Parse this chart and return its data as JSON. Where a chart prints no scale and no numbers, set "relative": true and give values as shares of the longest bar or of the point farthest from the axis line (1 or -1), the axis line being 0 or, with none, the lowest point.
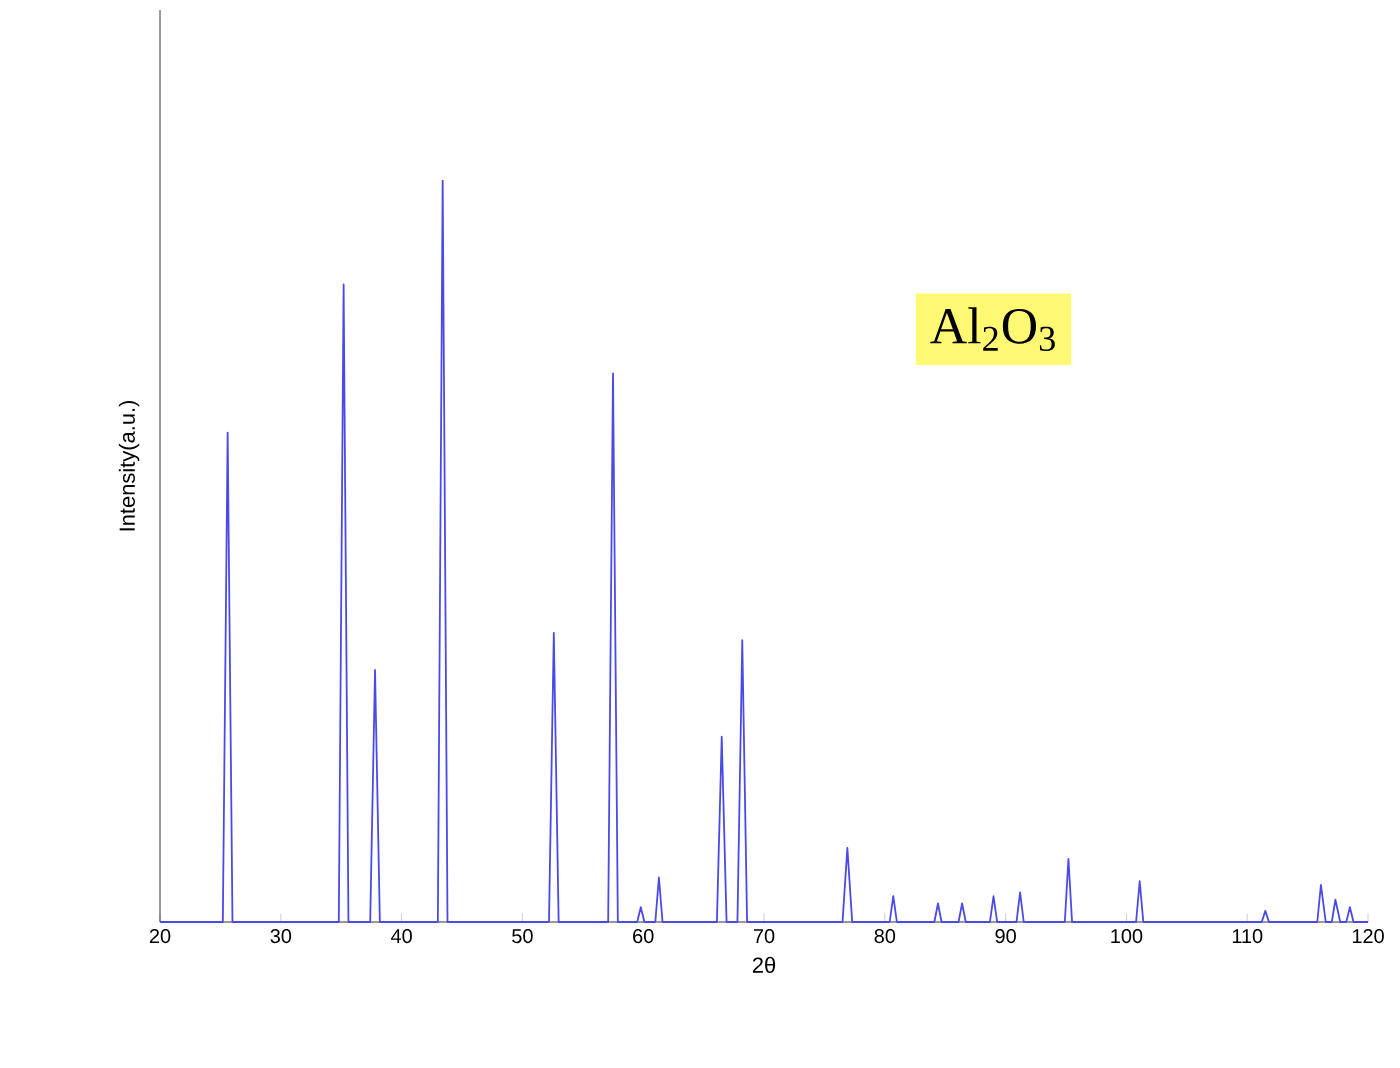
{
  "chart_data": {
    "type": "line",
    "relative": true,
    "xlabel": "2θ",
    "ylabel": "Intensity(a.u.)",
    "xlim": [
      20,
      120
    ],
    "xticks": [
      20,
      30,
      40,
      50,
      60,
      70,
      80,
      90,
      100,
      110,
      120
    ],
    "annotations": [
      "Al$_{2}$O$_{3}$"
    ],
    "marker": "none",
    "line_style": "solid",
    "series": [
      {
        "color": "#4a4ae6",
        "x": [
          20,
          25.2,
          25.6,
          26.0,
          34.8,
          35.2,
          35.6,
          37.4,
          37.8,
          38.2,
          43.0,
          43.4,
          43.8,
          52.2,
          52.6,
          53.0,
          57.1,
          57.5,
          57.9,
          59.5,
          59.8,
          60.1,
          61.0,
          61.3,
          61.6,
          66.1,
          66.5,
          66.9,
          67.8,
          68.2,
          68.6,
          76.5,
          76.9,
          77.3,
          80.4,
          80.7,
          81.0,
          84.1,
          84.4,
          84.7,
          86.1,
          86.4,
          86.7,
          88.7,
          89.0,
          89.3,
          90.9,
          91.2,
          91.5,
          94.9,
          95.2,
          95.5,
          100.8,
          101.1,
          101.4,
          111.2,
          111.5,
          111.8,
          115.8,
          116.1,
          116.5,
          117.0,
          117.3,
          117.7,
          118.2,
          118.5,
          118.8,
          120
        ],
        "values": [
          0,
          0,
          0.66,
          0,
          0,
          0.86,
          0,
          0,
          0.34,
          0,
          0,
          1.0,
          0,
          0,
          0.39,
          0,
          0,
          0.74,
          0,
          0,
          0.02,
          0,
          0,
          0.06,
          0,
          0,
          0.25,
          0,
          0,
          0.38,
          0,
          0,
          0.1,
          0,
          0,
          0.035,
          0,
          0,
          0.025,
          0,
          0,
          0.025,
          0,
          0,
          0.035,
          0,
          0,
          0.04,
          0,
          0,
          0.085,
          0,
          0,
          0.055,
          0,
          0,
          0.015,
          0,
          0,
          0.05,
          0,
          0,
          0.03,
          0,
          0,
          0.02,
          0,
          0
        ]
      }
    ]
  }
}
